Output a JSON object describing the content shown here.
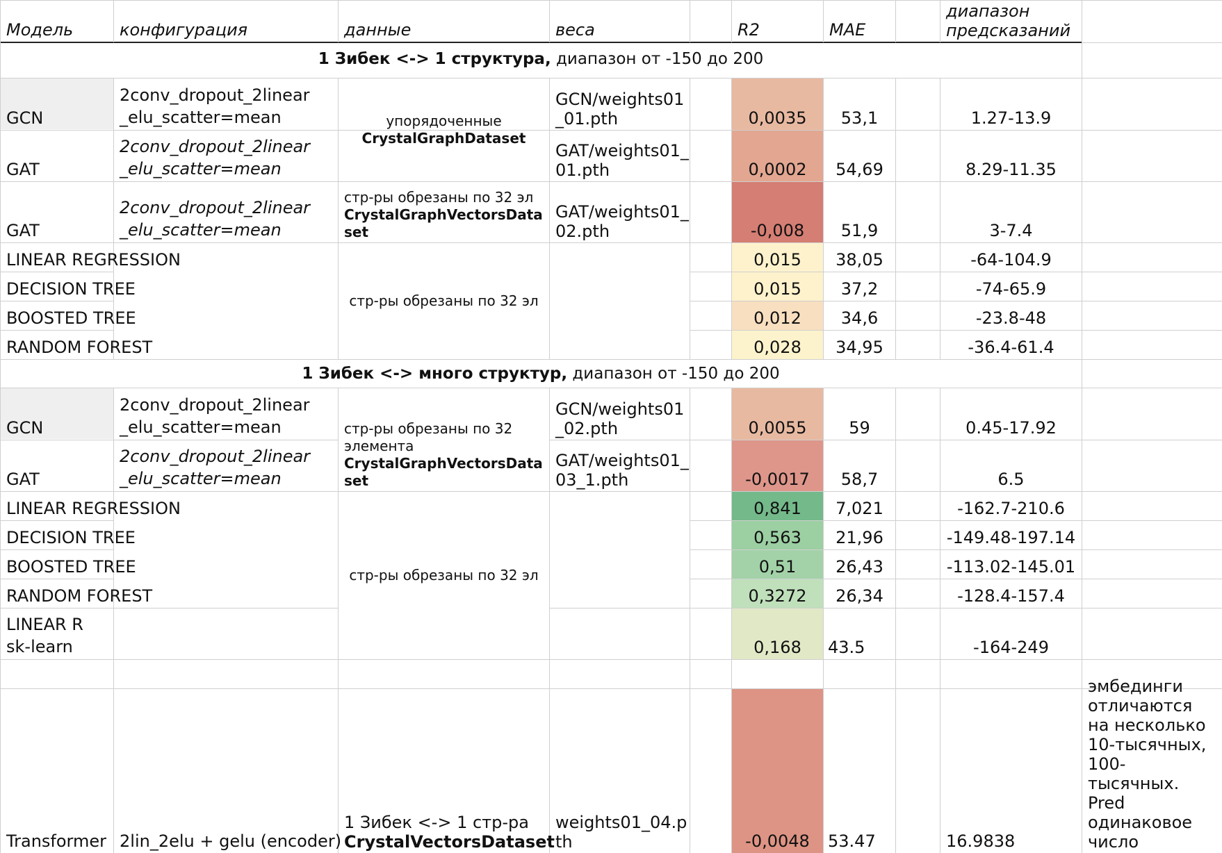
{
  "header": {
    "model": "Модель",
    "config": "конфигурация",
    "data": "данные",
    "weights": "веса",
    "r2": "R2",
    "mae": "MAE",
    "range_line1": "диапазон",
    "range_line2": "предсказаний"
  },
  "section1": {
    "title_bold": "1 Зибек <-> 1 структура,",
    "title_rest": " диапазон от -150 до 200",
    "rows": [
      {
        "model": "GCN",
        "config_l1": "2conv_dropout_2linear",
        "config_l2": "_elu_scatter=mean",
        "weights_l1": "GCN/weights01",
        "weights_l2": "_01.pth",
        "r2": "0,0035",
        "mae": "53,1",
        "range": "1.27-13.9"
      },
      {
        "model": "GAT",
        "config_l1": "2conv_dropout_2linear",
        "config_l2": "_elu_scatter=mean",
        "weights_l1": "GAT/weights01_",
        "weights_l2": "01.pth",
        "r2": "0,0002",
        "mae": "54,69",
        "range": "8.29-11.35"
      },
      {
        "model": "GAT",
        "config_l1": "2conv_dropout_2linear",
        "config_l2": "_elu_scatter=mean",
        "weights_l1": "GAT/weights01_",
        "weights_l2": "02.pth",
        "r2": "-0,008",
        "mae": "51,9",
        "range": "3-7.4"
      },
      {
        "model": "LINEAR REGRESSION",
        "r2": "0,015",
        "mae": "38,05",
        "range": "-64-104.9"
      },
      {
        "model": "DECISION TREE",
        "r2": "0,015",
        "mae": "37,2",
        "range": "-74-65.9"
      },
      {
        "model": "BOOSTED TREE",
        "r2": "0,012",
        "mae": "34,6",
        "range": "-23.8-48"
      },
      {
        "model": "RANDOM FOREST",
        "r2": "0,028",
        "mae": "34,95",
        "range": "-36.4-61.4"
      }
    ],
    "data_ordered_l1": "упорядоченные",
    "data_ordered_l2": "CrystalGraphDataset",
    "data_cut_l1": "стр-ры обрезаны по 32 эл",
    "data_cut_l2": "CrystalGraphVectorsData",
    "data_cut_l3": "set",
    "data_cut_simple": "стр-ры обрезаны по 32 эл"
  },
  "section2": {
    "title_bold": "1 Зибек <-> много структур,",
    "title_rest": " диапазон от -150 до 200",
    "rows": [
      {
        "model": "GCN",
        "config_l1": "2conv_dropout_2linear",
        "config_l2": "_elu_scatter=mean",
        "weights_l1": "GCN/weights01",
        "weights_l2": "_02.pth",
        "r2": "0,0055",
        "mae": "59",
        "range": "0.45-17.92"
      },
      {
        "model": "GAT",
        "config_l1": "2conv_dropout_2linear",
        "config_l2": "_elu_scatter=mean",
        "weights_l1": "GAT/weights01_",
        "weights_l2": "03_1.pth",
        "r2": "-0,0017",
        "mae": "58,7",
        "range": "6.5"
      },
      {
        "model": "LINEAR REGRESSION",
        "r2": "0,841",
        "mae": "7,021",
        "range": "-162.7-210.6"
      },
      {
        "model": "DECISION TREE",
        "r2": "0,563",
        "mae": "21,96",
        "range": "-149.48-197.14"
      },
      {
        "model": "BOOSTED TREE",
        "r2": "0,51",
        "mae": "26,43",
        "range": "-113.02-145.01"
      },
      {
        "model": "RANDOM FOREST",
        "r2": "0,3272",
        "mae": "26,34",
        "range": "-128.4-157.4"
      },
      {
        "model_l1": "LINEAR R",
        "model_l2": "sk-learn",
        "r2": "0,168",
        "mae": "43.5",
        "range": "-164-249"
      }
    ],
    "data_gnn_l1": "стр-ры обрезаны по 32",
    "data_gnn_l2": "элемента",
    "data_gnn_l3": "CrystalGraphVectorsData",
    "data_gnn_l4": "set",
    "data_cut_simple": "стр-ры обрезаны по 32 эл"
  },
  "transformer": {
    "model": "Transformer",
    "config": "2lin_2elu + gelu (encoder)",
    "data_l1": "1 Зибек <-> 1 стр-ра",
    "data_l2": "CrystalVectorsDataset",
    "weights_l1": "weights01_04.p",
    "weights_l2": "th",
    "r2": "-0,0048",
    "mae": "53.47",
    "range": "16.9838",
    "note": "эмбединги отличаются на несколько 10-тысячных, 100-тысячных. Pred одинаковое число"
  },
  "colors": {
    "gcn_row": "#efefef",
    "r2_0035": "#e8b9a1",
    "r2_0002": "#e2a691",
    "r2_m008": "#d57e73",
    "r2_015": "#fdf2cc",
    "r2_012": "#f8dfc0",
    "r2_028": "#fcf3cc",
    "r2_0055": "#e8b9a1",
    "r2_m0017": "#de968a",
    "r2_841": "#74b98a",
    "r2_563": "#9ccfa2",
    "r2_51": "#a3d2a8",
    "r2_3272": "#bfe0bb",
    "r2_168": "#e1e8c6",
    "r2_m0048": "#dd9484"
  }
}
